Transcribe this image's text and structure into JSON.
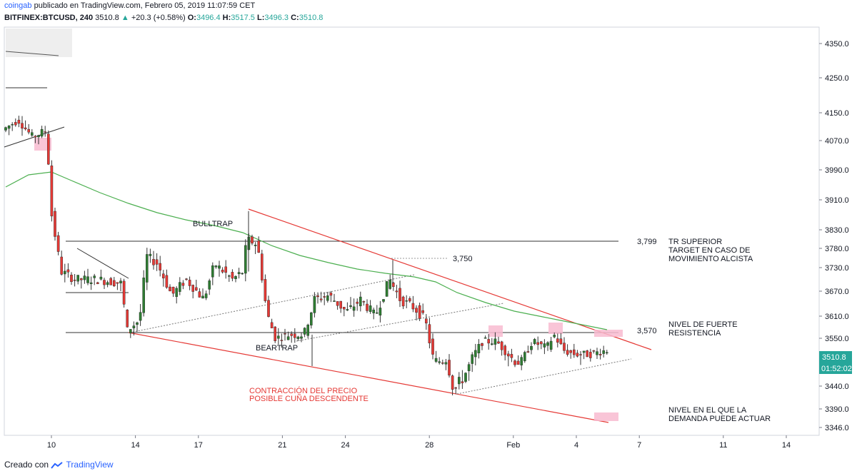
{
  "header": {
    "author": "coingab",
    "published_text": "publicado en TradingView.com, Febrero 05, 2019 11:07:59 CET",
    "symbol": "BITFINEX:BTCUSD, 240",
    "last": "3510.8",
    "change": "+20.3 (+0.58%)",
    "o_label": "O:",
    "o_value": "3496.4",
    "h_label": "H:",
    "h_value": "3517.5",
    "l_label": "L:",
    "l_value": "3496.3",
    "c_label": "C:",
    "c_value": "3510.8"
  },
  "footer": {
    "created_with": "Creado con",
    "brand": "TradingView"
  },
  "price_badge": "3510.8",
  "timer_badge": "01:52:02",
  "colors": {
    "up": "#26a69a",
    "down": "#ef5350",
    "ma": "#4caf50",
    "wedge": "#e53935",
    "text": "#131722",
    "highlight": "#f8bbd0"
  },
  "chart_data": {
    "type": "candlestick",
    "y_axis_ticks": [
      "4350.0",
      "4250.0",
      "4150.0",
      "4070.0",
      "3990.0",
      "3910.0",
      "3830.0",
      "3780.0",
      "3730.0",
      "3670.0",
      "3610.0",
      "3550.0",
      "3490.0",
      "3440.0",
      "3390.0",
      "3346.0"
    ],
    "x_axis_ticks": [
      {
        "label": "10",
        "pos": 0.5
      },
      {
        "label": "14",
        "pos": 4.5
      },
      {
        "label": "17",
        "pos": 7.5
      },
      {
        "label": "21",
        "pos": 11.5
      },
      {
        "label": "24",
        "pos": 14.5
      },
      {
        "label": "28",
        "pos": 18.5
      },
      {
        "label": "Feb",
        "pos": 22.5
      },
      {
        "label": "4",
        "pos": 25.5
      },
      {
        "label": "7",
        "pos": 28.5
      },
      {
        "label": "11",
        "pos": 32.5
      },
      {
        "label": "14",
        "pos": 35.5
      }
    ],
    "ylim": [
      3330,
      4385
    ],
    "annotations": {
      "bulltrap": "BULLTRAP",
      "beartrap": "BEARTRAP",
      "lvl3750": "3,750",
      "lvl3799": "3,799",
      "lvl3570": "3,570",
      "tr_superior_1": "TR SUPERIOR",
      "tr_superior_2": "TARGET EN CASO DE",
      "tr_superior_3": "MOVIMIENTO ALCISTA",
      "resist_1": "NIVEL DE FUERTE",
      "resist_2": "RESISTENCIA",
      "demand_1": "NIVEL EN EL QUE LA",
      "demand_2": "DEMANDA PUEDE ACTUAR",
      "wedge_1": "CONTRACCIÓN DEL PRECIO",
      "wedge_2": "POSIBLE CUÑA DESCENDENTE"
    }
  }
}
